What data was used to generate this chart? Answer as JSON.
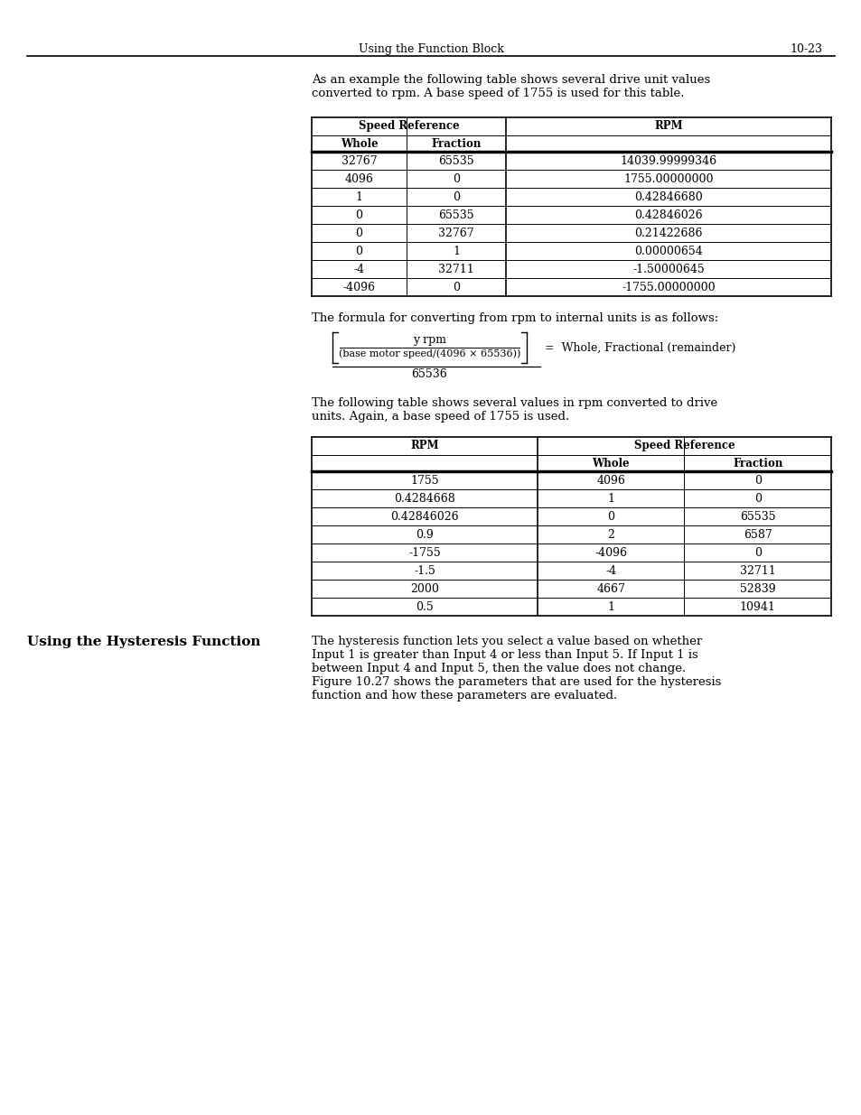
{
  "page_header_left": "Using the Function Block",
  "page_header_right": "10-23",
  "intro_text": "As an example the following table shows several drive unit values\nconverted to rpm. A base speed of 1755 is used for this table.",
  "table1_title_col1": "Speed Reference",
  "table1_title_col2": "RPM",
  "table1_col_headers": [
    "Whole",
    "Fraction"
  ],
  "table1_data": [
    [
      "32767",
      "65535",
      "14039.99999346"
    ],
    [
      "4096",
      "0",
      "1755.00000000"
    ],
    [
      "1",
      "0",
      "0.42846680"
    ],
    [
      "0",
      "65535",
      "0.42846026"
    ],
    [
      "0",
      "32767",
      "0.21422686"
    ],
    [
      "0",
      "1",
      "0.00000654"
    ],
    [
      "-4",
      "32711",
      "-1.50000645"
    ],
    [
      "-4096",
      "0",
      "-1755.00000000"
    ]
  ],
  "formula_text1": "The formula for converting from rpm to internal units is as follows:",
  "formula_numerator": "y rpm",
  "formula_denominator": "(base motor speed/(4096 × 65536))",
  "formula_divisor": "65536",
  "formula_result": "=  Whole, Fractional (remainder)",
  "table2_intro": "The following table shows several values in rpm converted to drive\nunits. Again, a base speed of 1755 is used.",
  "table2_title_col1": "RPM",
  "table2_title_col2": "Speed Reference",
  "table2_col_headers": [
    "Whole",
    "Fraction"
  ],
  "table2_data": [
    [
      "1755",
      "4096",
      "0"
    ],
    [
      "0.4284668",
      "1",
      "0"
    ],
    [
      "0.42846026",
      "0",
      "65535"
    ],
    [
      "0.9",
      "2",
      "6587"
    ],
    [
      "-1755",
      "-4096",
      "0"
    ],
    [
      "-1.5",
      "-4",
      "32711"
    ],
    [
      "2000",
      "4667",
      "52839"
    ],
    [
      "0.5",
      "1",
      "10941"
    ]
  ],
  "hysteresis_heading": "Using the Hysteresis Function",
  "hysteresis_text": "The hysteresis function lets you select a value based on whether\nInput 1 is greater than Input 4 or less than Input 5. If Input 1 is\nbetween Input 4 and Input 5, then the value does not change.\nFigure 10.27 shows the parameters that are used for the hysteresis\nfunction and how these parameters are evaluated.",
  "bg_color": "#ffffff"
}
